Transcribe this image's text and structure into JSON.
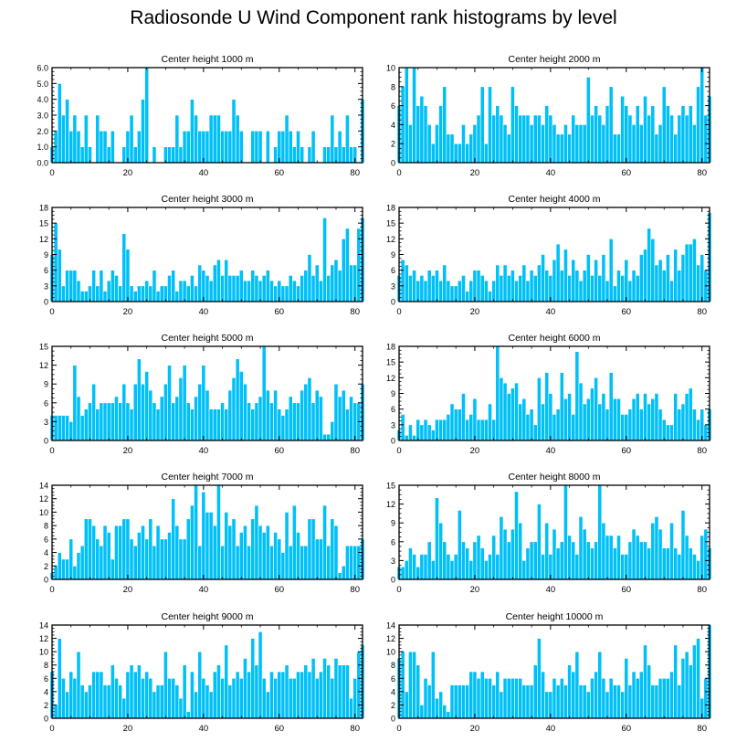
{
  "title": "Radiosonde U Wind Component rank histograms by level",
  "colors": {
    "bar": "#00c0f8",
    "bar_edge": "#ffffff",
    "axis": "#000000"
  },
  "chart_data": [
    {
      "type": "bar",
      "title": "Center height 1000 m",
      "xlim": [
        0,
        82
      ],
      "ylim": [
        0,
        6
      ],
      "yticks": [
        0,
        1,
        2,
        3,
        4,
        5,
        6
      ],
      "ytick_labels": [
        "0.0",
        "1.0",
        "2.0",
        "3.0",
        "4.0",
        "5.0",
        "6.0"
      ],
      "xticks": [
        0,
        20,
        40,
        60,
        80
      ],
      "values": [
        1,
        2,
        5,
        3,
        4,
        2,
        3,
        2,
        1,
        3,
        1,
        0,
        3,
        2,
        2,
        1,
        2,
        0,
        0,
        1,
        2,
        3,
        1,
        2,
        4,
        6,
        0,
        1,
        0,
        0,
        1,
        1,
        1,
        3,
        1,
        2,
        2,
        4,
        3,
        2,
        2,
        2,
        3,
        3,
        3,
        2,
        2,
        2,
        4,
        3,
        2,
        0,
        0,
        2,
        2,
        2,
        0,
        2,
        0,
        1,
        2,
        2,
        3,
        2,
        1,
        2,
        1,
        0,
        1,
        2,
        0,
        0,
        1,
        1,
        3,
        1,
        2,
        1,
        3,
        1,
        1,
        0,
        4
      ]
    },
    {
      "type": "bar",
      "title": "Center height 2000 m",
      "xlim": [
        0,
        82
      ],
      "ylim": [
        0,
        10
      ],
      "yticks": [
        0,
        2,
        4,
        6,
        8,
        10
      ],
      "ytick_labels": [
        "0",
        "2",
        "4",
        "6",
        "8",
        "10"
      ],
      "xticks": [
        0,
        20,
        40,
        60,
        80
      ],
      "values": [
        6,
        8,
        10,
        4,
        10,
        6,
        7,
        6,
        4,
        2,
        4,
        6,
        8,
        3,
        3,
        2,
        2,
        4,
        2,
        3,
        4,
        5,
        8,
        2,
        8,
        5,
        6,
        5,
        4,
        3,
        8,
        6,
        5,
        5,
        5,
        4,
        5,
        5,
        4,
        6,
        5,
        4,
        3,
        3,
        4,
        3,
        5,
        4,
        4,
        4,
        9,
        5,
        6,
        5,
        4,
        6,
        8,
        3,
        3,
        7,
        6,
        5,
        4,
        6,
        4,
        7,
        5,
        6,
        3,
        4,
        8,
        6,
        5,
        3,
        5,
        6,
        5,
        6,
        4,
        8,
        10,
        5,
        7
      ]
    },
    {
      "type": "bar",
      "title": "Center height 3000 m",
      "xlim": [
        0,
        82
      ],
      "ylim": [
        0,
        18
      ],
      "yticks": [
        0,
        3,
        6,
        9,
        12,
        15,
        18
      ],
      "ytick_labels": [
        "0",
        "3",
        "6",
        "9",
        "12",
        "15",
        "18"
      ],
      "xticks": [
        0,
        20,
        40,
        60,
        80
      ],
      "values": [
        9,
        15,
        10,
        3,
        6,
        6,
        6,
        4,
        2,
        2,
        3,
        6,
        3,
        6,
        2,
        4,
        6,
        5,
        3,
        13,
        10,
        3,
        2,
        3,
        3,
        4,
        3,
        6,
        2,
        3,
        3,
        5,
        6,
        2,
        4,
        4,
        3,
        5,
        3,
        7,
        6,
        5,
        4,
        7,
        8,
        5,
        8,
        5,
        5,
        5,
        6,
        4,
        4,
        6,
        5,
        4,
        5,
        6,
        4,
        3,
        4,
        3,
        3,
        5,
        4,
        3,
        5,
        6,
        9,
        5,
        7,
        4,
        16,
        5,
        7,
        8,
        6,
        12,
        14,
        7,
        7,
        14,
        16
      ]
    },
    {
      "type": "bar",
      "title": "Center height 4000 m",
      "xlim": [
        0,
        82
      ],
      "ylim": [
        0,
        18
      ],
      "yticks": [
        0,
        3,
        6,
        9,
        12,
        15,
        18
      ],
      "ytick_labels": [
        "0",
        "3",
        "6",
        "9",
        "12",
        "15",
        "18"
      ],
      "xticks": [
        0,
        20,
        40,
        60,
        80
      ],
      "values": [
        5,
        8,
        7,
        5,
        6,
        4,
        5,
        4,
        6,
        5,
        6,
        4,
        7,
        4,
        3,
        3,
        4,
        5,
        2,
        4,
        6,
        6,
        5,
        4,
        2,
        4,
        7,
        5,
        7,
        5,
        6,
        4,
        5,
        7,
        4,
        6,
        5,
        7,
        9,
        6,
        5,
        8,
        11,
        6,
        10,
        5,
        8,
        6,
        4,
        6,
        9,
        5,
        8,
        5,
        9,
        4,
        12,
        3,
        6,
        5,
        8,
        4,
        6,
        5,
        9,
        10,
        14,
        12,
        7,
        8,
        6,
        9,
        4,
        10,
        6,
        9,
        11,
        11,
        12,
        7,
        9,
        6,
        17
      ]
    },
    {
      "type": "bar",
      "title": "Center height 5000 m",
      "xlim": [
        0,
        82
      ],
      "ylim": [
        0,
        15
      ],
      "yticks": [
        0,
        3,
        6,
        9,
        12,
        15
      ],
      "ytick_labels": [
        "0",
        "3",
        "6",
        "9",
        "12",
        "15"
      ],
      "xticks": [
        0,
        20,
        40,
        60,
        80
      ],
      "values": [
        4,
        4,
        4,
        4,
        4,
        3,
        12,
        7,
        4,
        5,
        6,
        9,
        5,
        6,
        6,
        6,
        6,
        7,
        6,
        9,
        6,
        5,
        9,
        13,
        9,
        11,
        8,
        6,
        5,
        7,
        9,
        12,
        6,
        7,
        10,
        12,
        6,
        5,
        7,
        9,
        12,
        8,
        5,
        5,
        5,
        6,
        5,
        8,
        10,
        13,
        11,
        9,
        6,
        5,
        6,
        7,
        15,
        8,
        6,
        8,
        5,
        4,
        5,
        7,
        6,
        6,
        8,
        9,
        10,
        6,
        8,
        7,
        1,
        1,
        3,
        9,
        7,
        8,
        5,
        7,
        6,
        6,
        9
      ]
    },
    {
      "type": "bar",
      "title": "Center height 6000 m",
      "xlim": [
        0,
        82
      ],
      "ylim": [
        0,
        18
      ],
      "yticks": [
        0,
        3,
        6,
        9,
        12,
        15,
        18
      ],
      "ytick_labels": [
        "0",
        "3",
        "6",
        "9",
        "12",
        "15",
        "18"
      ],
      "xticks": [
        0,
        20,
        40,
        60,
        80
      ],
      "values": [
        2,
        5,
        1,
        3,
        1,
        4,
        3,
        4,
        3,
        2,
        4,
        4,
        4,
        5,
        7,
        6,
        6,
        9,
        4,
        5,
        8,
        4,
        4,
        4,
        7,
        4,
        18,
        12,
        11,
        9,
        10,
        11,
        7,
        8,
        5,
        6,
        3,
        12,
        7,
        13,
        9,
        5,
        6,
        13,
        8,
        9,
        5,
        17,
        11,
        7,
        8,
        10,
        12,
        7,
        9,
        6,
        13,
        8,
        8,
        5,
        5,
        6,
        8,
        9,
        6,
        9,
        7,
        8,
        9,
        6,
        4,
        3,
        3,
        9,
        6,
        7,
        9,
        10,
        6,
        4,
        6,
        3,
        6
      ]
    },
    {
      "type": "bar",
      "title": "Center height 7000 m",
      "xlim": [
        0,
        82
      ],
      "ylim": [
        0,
        14
      ],
      "yticks": [
        0,
        2,
        4,
        6,
        8,
        10,
        12,
        14
      ],
      "ytick_labels": [
        "0",
        "2",
        "4",
        "6",
        "8",
        "10",
        "12",
        "14"
      ],
      "xticks": [
        0,
        20,
        40,
        60,
        80
      ],
      "values": [
        1,
        2,
        4,
        3,
        3,
        6,
        2,
        4,
        5,
        9,
        9,
        8,
        6,
        5,
        8,
        7,
        3,
        8,
        8,
        9,
        9,
        6,
        5,
        7,
        8,
        6,
        9,
        5,
        8,
        6,
        6,
        7,
        12,
        8,
        6,
        6,
        9,
        11,
        14,
        5,
        13,
        10,
        10,
        8,
        14,
        5,
        10,
        8,
        9,
        5,
        7,
        8,
        5,
        9,
        11,
        8,
        7,
        8,
        5,
        7,
        6,
        4,
        10,
        5,
        11,
        7,
        5,
        5,
        9,
        9,
        6,
        6,
        11,
        5,
        9,
        8,
        1,
        2,
        5,
        5,
        5,
        5,
        6
      ]
    },
    {
      "type": "bar",
      "title": "Center height 8000 m",
      "xlim": [
        0,
        82
      ],
      "ylim": [
        0,
        15
      ],
      "yticks": [
        0,
        3,
        6,
        9,
        12,
        15
      ],
      "ytick_labels": [
        "0",
        "3",
        "6",
        "9",
        "12",
        "15"
      ],
      "xticks": [
        0,
        20,
        40,
        60,
        80
      ],
      "values": [
        2,
        2,
        3,
        5,
        4,
        2,
        4,
        4,
        6,
        3,
        13,
        9,
        6,
        4,
        3,
        4,
        11,
        6,
        5,
        3,
        6,
        7,
        5,
        3,
        4,
        7,
        4,
        10,
        8,
        6,
        8,
        14,
        9,
        3,
        5,
        6,
        6,
        12,
        4,
        9,
        4,
        8,
        5,
        6,
        15,
        7,
        6,
        4,
        10,
        8,
        6,
        5,
        6,
        15,
        9,
        7,
        7,
        5,
        7,
        4,
        4,
        6,
        8,
        7,
        6,
        6,
        5,
        9,
        10,
        8,
        5,
        5,
        9,
        5,
        4,
        11,
        7,
        5,
        4,
        3,
        7,
        8,
        5
      ]
    },
    {
      "type": "bar",
      "title": "Center height 9000 m",
      "xlim": [
        0,
        82
      ],
      "ylim": [
        0,
        14
      ],
      "yticks": [
        0,
        2,
        4,
        6,
        8,
        10,
        12,
        14
      ],
      "ytick_labels": [
        "0",
        "2",
        "4",
        "6",
        "8",
        "10",
        "12",
        "14"
      ],
      "xticks": [
        0,
        20,
        40,
        60,
        80
      ],
      "values": [
        7,
        2,
        12,
        6,
        4,
        7,
        6,
        10,
        5,
        4,
        5,
        7,
        7,
        7,
        5,
        5,
        8,
        6,
        5,
        3,
        7,
        8,
        7,
        8,
        6,
        7,
        6,
        4,
        5,
        5,
        10,
        6,
        6,
        5,
        3,
        8,
        1,
        7,
        4,
        10,
        6,
        5,
        4,
        7,
        8,
        6,
        11,
        5,
        6,
        7,
        6,
        9,
        7,
        12,
        8,
        13,
        6,
        4,
        7,
        6,
        7,
        7,
        8,
        6,
        6,
        7,
        7,
        8,
        7,
        9,
        6,
        7,
        9,
        8,
        6,
        9,
        8,
        8,
        8,
        3,
        6,
        10,
        11
      ]
    },
    {
      "type": "bar",
      "title": "Center height 10000 m",
      "xlim": [
        0,
        82
      ],
      "ylim": [
        0,
        14
      ],
      "yticks": [
        0,
        2,
        4,
        6,
        8,
        10,
        12,
        14
      ],
      "ytick_labels": [
        "0",
        "2",
        "4",
        "6",
        "8",
        "10",
        "12",
        "14"
      ],
      "xticks": [
        0,
        20,
        40,
        60,
        80
      ],
      "values": [
        9,
        10,
        4,
        10,
        10,
        8,
        2,
        6,
        5,
        10,
        3,
        4,
        2,
        1,
        5,
        5,
        5,
        5,
        5,
        7,
        7,
        6,
        7,
        6,
        6,
        5,
        7,
        4,
        6,
        6,
        6,
        6,
        6,
        5,
        5,
        5,
        8,
        12,
        7,
        4,
        4,
        6,
        5,
        6,
        5,
        8,
        7,
        10,
        5,
        5,
        4,
        6,
        7,
        10,
        6,
        4,
        6,
        5,
        5,
        4,
        9,
        5,
        7,
        6,
        7,
        11,
        8,
        5,
        5,
        6,
        6,
        6,
        7,
        11,
        5,
        9,
        10,
        8,
        11,
        12,
        3,
        6,
        14
      ]
    }
  ]
}
